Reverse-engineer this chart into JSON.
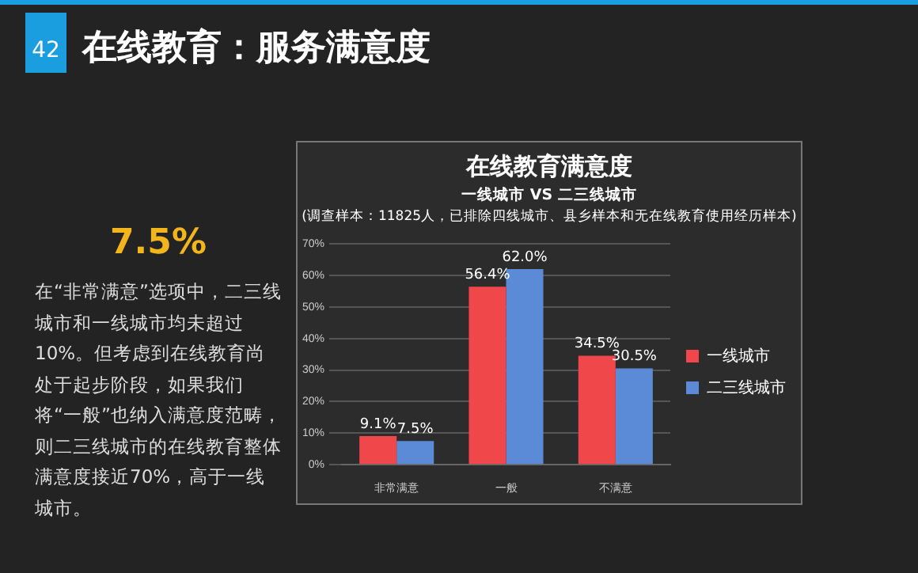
{
  "chart_data": {
    "type": "bar",
    "title": "在线教育满意度",
    "subtitle": "一线城市 VS 二三线城市",
    "annotations": [
      "(调查样本：11825人，已排除四线城市、县乡样本和无在线教育使用经历样本)",
      "42",
      "在线教育：服务满意度",
      "7.5%",
      "在“非常满意”选项中，二三线城市和一线城市均未超过10%。但考虑到在线教育尚处于起步阶段，如果我们将“一般”也纳入满意度范畴，则二三线城市的在线教育整体满意度接近70%，高于一线城市。"
    ],
    "categories": [
      "非常满意",
      "一般",
      "不满意"
    ],
    "series": [
      {
        "name": "一线城市",
        "color": "#f0474b",
        "values": [
          9.1,
          56.4,
          34.5
        ]
      },
      {
        "name": "二三线城市",
        "color": "#5b8bd6",
        "values": [
          7.5,
          62.0,
          30.5
        ]
      }
    ],
    "value_labels": [
      [
        "9.1%",
        "56.4%",
        "34.5%"
      ],
      [
        "7.5%",
        "62.0%",
        "30.5%"
      ]
    ],
    "ylim": [
      0,
      70
    ],
    "yticks": [
      {
        "value": 0,
        "label": "0%"
      },
      {
        "value": 10,
        "label": "10%"
      },
      {
        "value": 20,
        "label": "20%"
      },
      {
        "value": 30,
        "label": "30%"
      },
      {
        "value": 40,
        "label": "40%"
      },
      {
        "value": 50,
        "label": "50%"
      },
      {
        "value": 60,
        "label": "60%"
      },
      {
        "value": 70,
        "label": "70%"
      }
    ],
    "grid": "y",
    "legend": "right"
  }
}
